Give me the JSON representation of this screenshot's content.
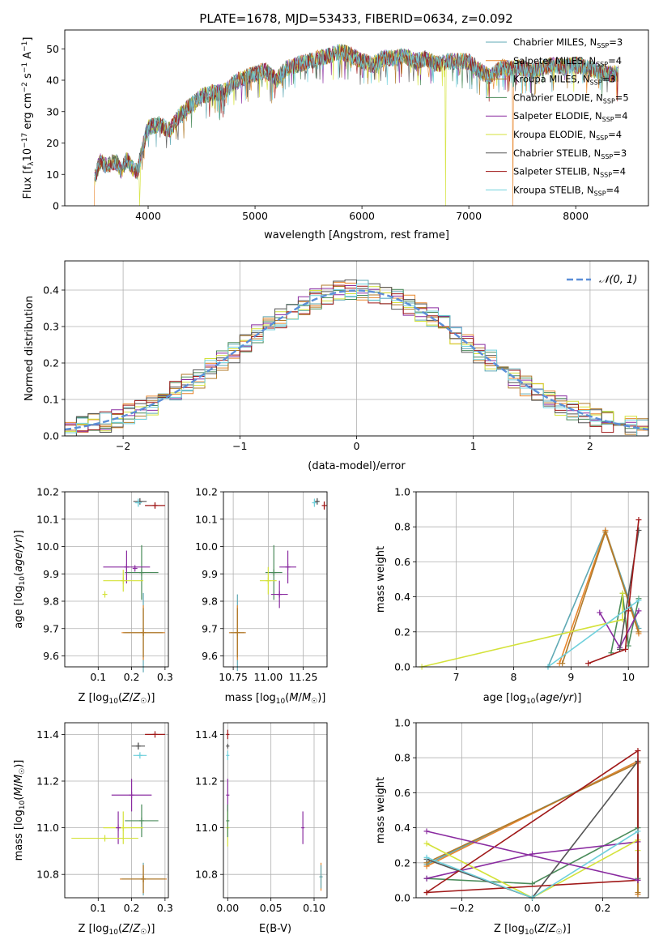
{
  "title": "PLATE=1678, MJD=53433, FIBERID=0634, z=0.092",
  "series": [
    {
      "name": "Chabrier MILES",
      "nssp": "3",
      "color": "#5fa9b4"
    },
    {
      "name": "Salpeter MILES",
      "nssp": "4",
      "color": "#e8862c"
    },
    {
      "name": "Kroupa MILES",
      "nssp": "3",
      "color": "#b07a2a"
    },
    {
      "name": "Chabrier ELODIE",
      "nssp": "5",
      "color": "#4a8b5a"
    },
    {
      "name": "Salpeter ELODIE",
      "nssp": "4",
      "color": "#8a2ba0"
    },
    {
      "name": "Kroupa ELODIE",
      "nssp": "4",
      "color": "#d4e23a"
    },
    {
      "name": "Chabrier STELIB",
      "nssp": "3",
      "color": "#555555"
    },
    {
      "name": "Salpeter STELIB",
      "nssp": "4",
      "color": "#a01818"
    },
    {
      "name": "Kroupa STELIB",
      "nssp": "4",
      "color": "#6fd0dc"
    }
  ],
  "chart_data": [
    {
      "id": "spectrum",
      "type": "line",
      "xlabel": "wavelength [Angstrom, rest frame]",
      "ylabel": "Flux [f_λ 10^-17 erg cm^-2 s^-1 A^-1]",
      "xlim": [
        3220,
        8680
      ],
      "ylim": [
        0,
        56
      ],
      "xticks": [
        "4000",
        "5000",
        "6000",
        "7000",
        "8000"
      ],
      "yticks": [
        "0",
        "10",
        "20",
        "30",
        "40",
        "50"
      ],
      "legend": "top-right",
      "envelope": [
        [
          3500,
          9
        ],
        [
          3550,
          14
        ],
        [
          3600,
          13
        ],
        [
          3700,
          14
        ],
        [
          3750,
          11
        ],
        [
          3800,
          15
        ],
        [
          3850,
          12
        ],
        [
          3900,
          11
        ],
        [
          3950,
          19
        ],
        [
          4000,
          25
        ],
        [
          4100,
          26
        ],
        [
          4200,
          24
        ],
        [
          4300,
          29
        ],
        [
          4400,
          32
        ],
        [
          4500,
          35
        ],
        [
          4600,
          36
        ],
        [
          4700,
          36
        ],
        [
          4800,
          39
        ],
        [
          4900,
          41
        ],
        [
          5000,
          42
        ],
        [
          5100,
          43
        ],
        [
          5200,
          40
        ],
        [
          5300,
          44
        ],
        [
          5400,
          45
        ],
        [
          5500,
          46
        ],
        [
          5600,
          47
        ],
        [
          5700,
          48
        ],
        [
          5800,
          49
        ],
        [
          5900,
          48
        ],
        [
          6000,
          46
        ],
        [
          6100,
          45
        ],
        [
          6200,
          47
        ],
        [
          6300,
          47
        ],
        [
          6400,
          48
        ],
        [
          6500,
          46
        ],
        [
          6600,
          47
        ],
        [
          6700,
          45
        ],
        [
          6800,
          46
        ],
        [
          6900,
          46
        ],
        [
          7000,
          46
        ],
        [
          7100,
          43
        ],
        [
          7200,
          41
        ],
        [
          7300,
          44
        ],
        [
          7400,
          44
        ],
        [
          7500,
          44
        ],
        [
          7600,
          43
        ],
        [
          7700,
          44
        ],
        [
          7800,
          45
        ],
        [
          7900,
          44
        ],
        [
          8000,
          45
        ],
        [
          8100,
          44
        ],
        [
          8200,
          43
        ],
        [
          8300,
          42
        ],
        [
          8400,
          42
        ]
      ],
      "gaps": [
        [
          3920,
          "Kroupa ELODIE"
        ],
        [
          6780,
          "Kroupa ELODIE"
        ],
        [
          7410,
          "Salpeter MILES"
        ]
      ]
    },
    {
      "id": "residuals",
      "type": "histogram",
      "xlabel": "(data-model)/error",
      "ylabel": "Normed distribution",
      "xlim": [
        -2.5,
        2.5
      ],
      "ylim": [
        0,
        0.48
      ],
      "xticks": [
        "−2",
        "−1",
        "0",
        "1",
        "2"
      ],
      "yticks": [
        "0.0",
        "0.1",
        "0.2",
        "0.3",
        "0.4"
      ],
      "bin_width": 0.1,
      "legend": "top-right",
      "reference_label": "𝒩(0, 1)"
    },
    {
      "id": "age-vs-Z",
      "type": "scatter",
      "xlabel": "Z [log10(Z/Z☉)]",
      "ylabel": "age [log10(age/yr)]",
      "xlim": [
        0.0,
        0.31
      ],
      "ylim": [
        9.56,
        10.2
      ],
      "xticks": [
        "0.1",
        "0.2",
        "0.3"
      ],
      "yticks": [
        "9.6",
        "9.7",
        "9.8",
        "9.9",
        "10.0",
        "10.1",
        "10.2"
      ],
      "points": [
        {
          "series": "Chabrier MILES",
          "x": 0.235,
          "y": 9.685,
          "xerr": 0.055,
          "yerr": 0.145
        },
        {
          "series": "Salpeter MILES",
          "x": 0.235,
          "y": 9.685,
          "xerr": 0.065,
          "yerr": 0.1
        },
        {
          "series": "Kroupa MILES",
          "x": 0.235,
          "y": 9.685,
          "xerr": 0.06,
          "yerr": 0.09
        },
        {
          "series": "Chabrier ELODIE",
          "x": 0.23,
          "y": 9.905,
          "xerr": 0.05,
          "yerr": 0.1
        },
        {
          "series": "Salpeter ELODIE",
          "x": 0.185,
          "y": 9.925,
          "xerr": 0.07,
          "yerr": 0.06
        },
        {
          "series": "Kroupa ELODIE",
          "x": 0.175,
          "y": 9.875,
          "xerr": 0.06,
          "yerr": 0.04
        },
        {
          "series": "Chabrier STELIB",
          "x": 0.225,
          "y": 10.165,
          "xerr": 0.02,
          "yerr": 0.01
        },
        {
          "series": "Salpeter STELIB",
          "x": 0.27,
          "y": 10.15,
          "xerr": 0.03,
          "yerr": 0.01
        },
        {
          "series": "Kroupa STELIB",
          "x": 0.22,
          "y": 10.16,
          "xerr": 0.01,
          "yerr": 0.015
        },
        {
          "series": "Salpeter ELODIE",
          "x": 0.21,
          "y": 9.92,
          "xerr": 0.0,
          "yerr": 0.0
        },
        {
          "series": "Kroupa ELODIE",
          "x": 0.12,
          "y": 9.825,
          "xerr": 0.0,
          "yerr": 0.0
        }
      ]
    },
    {
      "id": "age-vs-mass",
      "type": "scatter",
      "xlabel": "mass [log10(M/M☉)]",
      "ylabel": "",
      "xlim": [
        10.68,
        11.42
      ],
      "ylim": [
        9.56,
        10.2
      ],
      "xticks": [
        "10.75",
        "11.00",
        "11.25"
      ],
      "yticks": [
        "9.6",
        "9.7",
        "9.8",
        "9.9",
        "10.0",
        "10.1",
        "10.2"
      ],
      "points": [
        {
          "series": "Chabrier MILES",
          "x": 10.78,
          "y": 9.685,
          "xerr": 0.06,
          "yerr": 0.14
        },
        {
          "series": "Salpeter MILES",
          "x": 10.78,
          "y": 9.685,
          "xerr": 0.06,
          "yerr": 0.1
        },
        {
          "series": "Kroupa MILES",
          "x": 10.78,
          "y": 9.685,
          "xerr": 0.05,
          "yerr": 0.09
        },
        {
          "series": "Chabrier ELODIE",
          "x": 11.04,
          "y": 9.905,
          "xerr": 0.06,
          "yerr": 0.1
        },
        {
          "series": "Salpeter ELODIE",
          "x": 11.14,
          "y": 9.925,
          "xerr": 0.06,
          "yerr": 0.06
        },
        {
          "series": "Kroupa ELODIE",
          "x": 11.0,
          "y": 9.875,
          "xerr": 0.06,
          "yerr": 0.05
        },
        {
          "series": "Chabrier STELIB",
          "x": 11.35,
          "y": 10.165,
          "xerr": 0.01,
          "yerr": 0.01
        },
        {
          "series": "Salpeter STELIB",
          "x": 11.4,
          "y": 10.15,
          "xerr": 0.0,
          "yerr": 0.015
        },
        {
          "series": "Kroupa STELIB",
          "x": 11.33,
          "y": 10.16,
          "xerr": 0.01,
          "yerr": 0.015
        },
        {
          "series": "Salpeter ELODIE",
          "x": 11.08,
          "y": 9.825,
          "xerr": 0.06,
          "yerr": 0.05
        }
      ]
    },
    {
      "id": "mass-weight-vs-age",
      "type": "line",
      "xlabel": "age [log10(age/yr)]",
      "ylabel": "mass weight",
      "xlim": [
        6.3,
        10.35
      ],
      "ylim": [
        0,
        1.0
      ],
      "xticks": [
        "7",
        "8",
        "9",
        "10"
      ],
      "yticks": [
        "0.0",
        "0.2",
        "0.4",
        "0.6",
        "0.8",
        "1.0"
      ],
      "lines": [
        {
          "series": "Chabrier MILES",
          "x": [
            8.6,
            9.6,
            10.18
          ],
          "y": [
            0.0,
            0.78,
            0.22
          ]
        },
        {
          "series": "Salpeter MILES",
          "x": [
            8.8,
            9.6,
            10.18
          ],
          "y": [
            0.02,
            0.78,
            0.19
          ]
        },
        {
          "series": "Kroupa MILES",
          "x": [
            8.85,
            9.6,
            10.18
          ],
          "y": [
            0.02,
            0.77,
            0.2
          ]
        },
        {
          "series": "Chabrier ELODIE",
          "x": [
            9.7,
            9.9,
            10.0,
            10.18
          ],
          "y": [
            0.08,
            0.42,
            0.12,
            0.39
          ]
        },
        {
          "series": "Salpeter ELODIE",
          "x": [
            9.5,
            9.85,
            10.18
          ],
          "y": [
            0.31,
            0.11,
            0.32
          ]
        },
        {
          "series": "Kroupa ELODIE",
          "x": [
            6.4,
            9.9,
            9.9
          ],
          "y": [
            0.0,
            0.27,
            0.42
          ]
        },
        {
          "series": "Chabrier STELIB",
          "x": [
            9.85,
            10.18
          ],
          "y": [
            0.1,
            0.78
          ]
        },
        {
          "series": "Salpeter STELIB",
          "x": [
            9.3,
            9.95,
            10.0,
            10.18
          ],
          "y": [
            0.02,
            0.1,
            0.32,
            0.84
          ]
        },
        {
          "series": "Kroupa STELIB",
          "x": [
            8.6,
            10.18
          ],
          "y": [
            0.0,
            0.38
          ]
        }
      ]
    },
    {
      "id": "mass-vs-Z",
      "type": "scatter",
      "xlabel": "Z [log10(Z/Z☉)]",
      "ylabel": "mass [log10(M/M☉)]",
      "xlim": [
        0.0,
        0.31
      ],
      "ylim": [
        10.7,
        11.45
      ],
      "xticks": [
        "0.1",
        "0.2",
        "0.3"
      ],
      "yticks": [
        "10.8",
        "11.0",
        "11.2",
        "11.4"
      ],
      "points": [
        {
          "series": "Chabrier MILES",
          "x": 0.235,
          "y": 10.78,
          "xerr": 0.07,
          "yerr": 0.07
        },
        {
          "series": "Salpeter MILES",
          "x": 0.235,
          "y": 10.78,
          "xerr": 0.07,
          "yerr": 0.06
        },
        {
          "series": "Kroupa MILES",
          "x": 0.235,
          "y": 10.78,
          "xerr": 0.065,
          "yerr": 0.06
        },
        {
          "series": "Chabrier ELODIE",
          "x": 0.23,
          "y": 11.03,
          "xerr": 0.05,
          "yerr": 0.07
        },
        {
          "series": "Salpeter ELODIE",
          "x": 0.2,
          "y": 11.14,
          "xerr": 0.06,
          "yerr": 0.07
        },
        {
          "series": "Kroupa ELODIE",
          "x": 0.175,
          "y": 11.0,
          "xerr": 0.06,
          "yerr": 0.07
        },
        {
          "series": "Chabrier STELIB",
          "x": 0.22,
          "y": 11.35,
          "xerr": 0.02,
          "yerr": 0.015
        },
        {
          "series": "Salpeter STELIB",
          "x": 0.27,
          "y": 11.4,
          "xerr": 0.03,
          "yerr": 0.0
        },
        {
          "series": "Kroupa STELIB",
          "x": 0.225,
          "y": 11.31,
          "xerr": 0.02,
          "yerr": 0.01
        },
        {
          "series": "Salpeter ELODIE",
          "x": 0.16,
          "y": 11.0,
          "xerr": 0.0,
          "yerr": 0.07
        },
        {
          "series": "Kroupa ELODIE",
          "x": 0.12,
          "y": 10.955,
          "xerr": 0.1,
          "yerr": 0.0
        }
      ]
    },
    {
      "id": "mass-vs-EBV",
      "type": "scatter",
      "xlabel": "E(B-V)",
      "ylabel": "",
      "xlim": [
        -0.005,
        0.115
      ],
      "ylim": [
        10.7,
        11.45
      ],
      "xticks": [
        "0.00",
        "0.05",
        "0.10"
      ],
      "yticks": [
        "10.8",
        "11.0",
        "11.2",
        "11.4"
      ],
      "points": [
        {
          "series": "Salpeter MILES",
          "x": 0.108,
          "y": 10.79,
          "xerr": 0.0,
          "yerr": 0.06
        },
        {
          "series": "Chabrier MILES",
          "x": 0.108,
          "y": 10.79,
          "xerr": 0.0,
          "yerr": 0.05
        },
        {
          "series": "Salpeter ELODIE",
          "x": 0.087,
          "y": 11.0,
          "xerr": 0.0,
          "yerr": 0.07
        },
        {
          "series": "Kroupa ELODIE",
          "x": 0.0,
          "y": 11.0,
          "xerr": 0.0,
          "yerr": 0.08
        },
        {
          "series": "Salpeter ELODIE",
          "x": 0.0,
          "y": 11.14,
          "xerr": 0.0,
          "yerr": 0.07
        },
        {
          "series": "Chabrier ELODIE",
          "x": 0.0,
          "y": 11.03,
          "xerr": 0.0,
          "yerr": 0.07
        },
        {
          "series": "Chabrier STELIB",
          "x": 0.0,
          "y": 11.35,
          "xerr": 0.0,
          "yerr": 0.01
        },
        {
          "series": "Salpeter STELIB",
          "x": 0.0,
          "y": 11.4,
          "xerr": 0.0,
          "yerr": 0.02
        },
        {
          "series": "Kroupa STELIB",
          "x": 0.0,
          "y": 11.31,
          "xerr": 0.0,
          "yerr": 0.02
        }
      ]
    },
    {
      "id": "mass-weight-vs-Z",
      "type": "line",
      "xlabel": "Z [log10(Z/Z☉)]",
      "ylabel": "mass weight",
      "xlim": [
        -0.33,
        0.33
      ],
      "ylim": [
        0,
        1.0
      ],
      "xticks": [
        "−0.2",
        "0.0",
        "0.2"
      ],
      "yticks": [
        "0.0",
        "0.2",
        "0.4",
        "0.6",
        "0.8",
        "1.0"
      ],
      "lines": [
        {
          "series": "Chabrier MILES",
          "x": [
            -0.3,
            0.3,
            0.3
          ],
          "y": [
            0.19,
            0.78,
            0.02
          ]
        },
        {
          "series": "Salpeter MILES",
          "x": [
            -0.3,
            0.3,
            0.3
          ],
          "y": [
            0.18,
            0.78,
            0.02
          ]
        },
        {
          "series": "Kroupa MILES",
          "x": [
            -0.3,
            0.3,
            0.3
          ],
          "y": [
            0.2,
            0.77,
            0.03
          ]
        },
        {
          "series": "Chabrier ELODIE",
          "x": [
            -0.3,
            0.0,
            0.3,
            0.3
          ],
          "y": [
            0.11,
            0.08,
            0.4,
            0.11
          ]
        },
        {
          "series": "Salpeter ELODIE",
          "x": [
            -0.3,
            0.0,
            0.3
          ],
          "y": [
            0.11,
            0.25,
            0.32
          ]
        },
        {
          "series": "Kroupa ELODIE",
          "x": [
            -0.3,
            0.0,
            0.3,
            0.3
          ],
          "y": [
            0.31,
            0.0,
            0.33,
            0.27
          ]
        },
        {
          "series": "Chabrier STELIB",
          "x": [
            -0.3,
            0.0,
            0.3,
            0.3
          ],
          "y": [
            0.22,
            0.0,
            0.78,
            0.1
          ]
        },
        {
          "series": "Salpeter STELIB",
          "x": [
            -0.3,
            0.3,
            0.3,
            -0.3
          ],
          "y": [
            0.03,
            0.84,
            0.1,
            0.03
          ]
        },
        {
          "series": "Kroupa STELIB",
          "x": [
            -0.3,
            0.0,
            0.3
          ],
          "y": [
            0.23,
            0.0,
            0.38
          ]
        },
        {
          "series": "Salpeter ELODIE",
          "x": [
            -0.3,
            0.3
          ],
          "y": [
            0.38,
            0.1
          ]
        }
      ]
    }
  ]
}
